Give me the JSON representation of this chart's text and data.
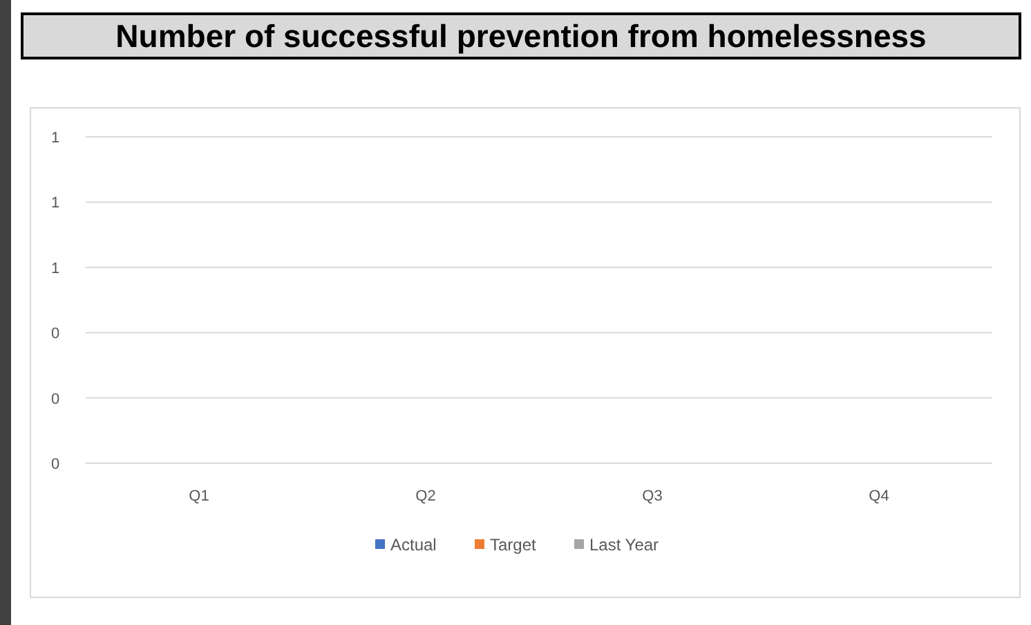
{
  "chart_data": {
    "type": "bar",
    "title": "Number of successful prevention from homelessness",
    "categories": [
      "Q1",
      "Q2",
      "Q3",
      "Q4"
    ],
    "series": [
      {
        "name": "Actual",
        "color": "#4472c4",
        "values": [
          null,
          null,
          null,
          null
        ]
      },
      {
        "name": "Target",
        "color": "#ed7d31",
        "values": [
          null,
          null,
          null,
          null
        ]
      },
      {
        "name": "Last Year",
        "color": "#a5a5a5",
        "values": [
          null,
          null,
          null,
          null
        ]
      }
    ],
    "ylim": [
      0,
      1
    ],
    "yticks": [
      {
        "value": 0,
        "label": "0"
      },
      {
        "value": 0.2,
        "label": "0"
      },
      {
        "value": 0.4,
        "label": "0"
      },
      {
        "value": 0.6,
        "label": "1"
      },
      {
        "value": 0.8,
        "label": "1"
      },
      {
        "value": 1,
        "label": "1"
      }
    ],
    "grid": true,
    "legend": "bottom"
  }
}
